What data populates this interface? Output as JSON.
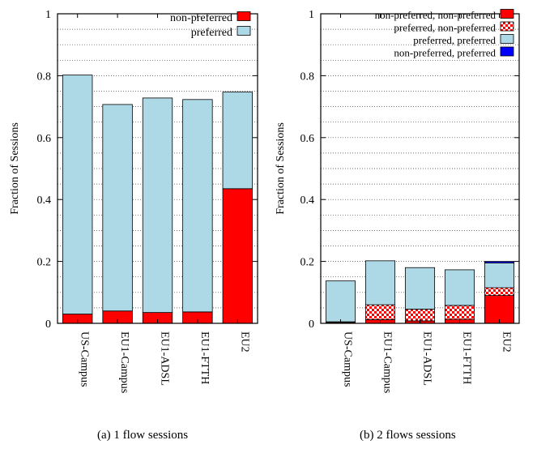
{
  "chart_data": [
    {
      "type": "bar",
      "stacked": true,
      "caption": "(a) 1 flow sessions",
      "ylabel": "Fraction of Sessions",
      "ylim": [
        0,
        1
      ],
      "yticks": [
        0,
        0.2,
        0.4,
        0.6,
        0.8,
        1
      ],
      "yticklabels": [
        "0",
        "0.2",
        "0.4",
        "0.6",
        "0.8",
        "1"
      ],
      "categories": [
        "US-Campus",
        "EU1-Campus",
        "EU1-ADSL",
        "EU1-FTTH",
        "EU2"
      ],
      "legend_position": "top-right",
      "grid": "horizontal-dotted",
      "series": [
        {
          "name": "non-preferred",
          "color": "#ff0000",
          "pattern": "solid",
          "values": [
            0.03,
            0.04,
            0.035,
            0.037,
            0.435
          ]
        },
        {
          "name": "preferred",
          "color": "#add8e6",
          "pattern": "solid",
          "values": [
            0.772,
            0.667,
            0.693,
            0.686,
            0.312
          ]
        }
      ]
    },
    {
      "type": "bar",
      "stacked": true,
      "caption": "(b) 2 flows sessions",
      "ylabel": "Fraction of Sessions",
      "ylim": [
        0,
        1
      ],
      "yticks": [
        0,
        0.2,
        0.4,
        0.6,
        0.8,
        1
      ],
      "yticklabels": [
        "0",
        "0.2",
        "0.4",
        "0.6",
        "0.8",
        "1"
      ],
      "categories": [
        "US-Campus",
        "EU1-Campus",
        "EU1-ADSL",
        "EU1-FTTH",
        "EU2"
      ],
      "legend_position": "top-right",
      "grid": "horizontal-dotted",
      "series": [
        {
          "name": "non-preferred, non-preferred",
          "color": "#ff0000",
          "pattern": "solid",
          "values": [
            0.003,
            0.012,
            0.008,
            0.013,
            0.09
          ]
        },
        {
          "name": "preferred, non-preferred",
          "color": "#ff0000",
          "pattern": "checker",
          "values": [
            0.002,
            0.048,
            0.038,
            0.045,
            0.025
          ]
        },
        {
          "name": "preferred, preferred",
          "color": "#add8e6",
          "pattern": "solid",
          "values": [
            0.132,
            0.142,
            0.134,
            0.115,
            0.08
          ]
        },
        {
          "name": "non-preferred, preferred",
          "color": "#0000ff",
          "pattern": "solid",
          "values": [
            0.0,
            0.0,
            0.0,
            0.0,
            0.005
          ]
        }
      ]
    }
  ]
}
